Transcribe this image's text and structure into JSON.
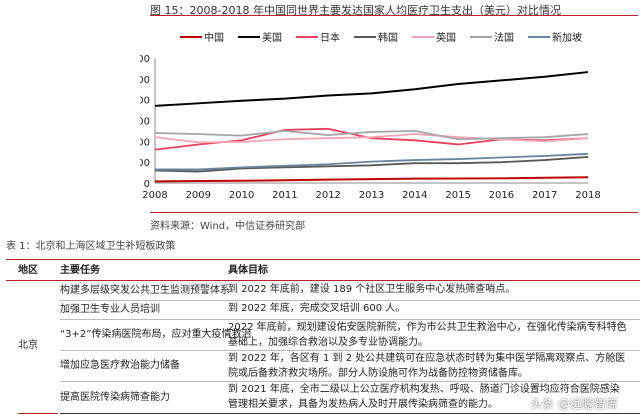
{
  "figure": {
    "title": "图 15：2008-2018 年中国同世界主要发达国家人均医疗卫生支出（美元）对比情况",
    "source": "资料来源：Wind，中信证券研究部"
  },
  "chart_data": {
    "type": "line",
    "title": "",
    "xlabel": "",
    "ylabel": "",
    "x": [
      2008,
      2009,
      2010,
      2011,
      2012,
      2013,
      2014,
      2015,
      2016,
      2017,
      2018
    ],
    "ylim": [
      0,
      12000
    ],
    "yticks": [
      "0",
      "2,000",
      "4,000",
      "6,000",
      "8,000",
      "10,000",
      "12,000"
    ],
    "legend": "top",
    "grid": false,
    "series": [
      {
        "name": "中国",
        "color": "#c00000",
        "values": [
          160,
          190,
          220,
          260,
          320,
          370,
          420,
          430,
          450,
          500,
          550
        ]
      },
      {
        "name": "美国",
        "color": "#000000",
        "values": [
          7400,
          7650,
          7900,
          8100,
          8400,
          8600,
          9000,
          9500,
          9850,
          10200,
          10650
        ]
      },
      {
        "name": "日本",
        "color": "#e8415f",
        "values": [
          3200,
          3700,
          4100,
          5100,
          5200,
          4300,
          4100,
          3700,
          4200,
          4100,
          4300
        ]
      },
      {
        "name": "韩国",
        "color": "#595959",
        "values": [
          1200,
          1100,
          1400,
          1500,
          1600,
          1700,
          1900,
          1900,
          2000,
          2200,
          2500
        ]
      },
      {
        "name": "英国",
        "color": "#f4a6b4",
        "values": [
          4400,
          3900,
          3950,
          4200,
          4300,
          4400,
          4700,
          4400,
          4200,
          4000,
          4300
        ]
      },
      {
        "name": "法国",
        "color": "#a6a6a6",
        "values": [
          4800,
          4700,
          4550,
          5000,
          4600,
          4900,
          5000,
          4200,
          4300,
          4400,
          4700
        ]
      },
      {
        "name": "新加坡",
        "color": "#6d849e",
        "values": [
          1300,
          1300,
          1500,
          1650,
          1800,
          2050,
          2200,
          2300,
          2450,
          2600,
          2800
        ]
      }
    ]
  },
  "table": {
    "title": "表 1：北京和上海区域卫生补短板政策",
    "headers": [
      "地区",
      "主要任务",
      "具体目标"
    ],
    "region": "北京",
    "rows": [
      {
        "task": "构建多层级突发公共卫生监测预警体系",
        "target": "到 2022 年底前，建设 189 个社区卫生服务中心发热筛查哨点。"
      },
      {
        "task": "加强卫生专业人员培训",
        "target": "到 2022 年底，完成交叉培训 600 人。"
      },
      {
        "task": "“3+2”传染病医院布局，应对重大疫情救治",
        "target": "2022 年底前，规划建设佑安医院新院，作为市公共卫生救治中心，在强化传染病专科特色基础上，加强综合救治以及多专业协调能力。"
      },
      {
        "task": "增加应急医疗救治能力储备",
        "target": "到 2022 年，各区有 1 到 2 处公共建筑可在应急状态时转为集中医学隔离观察点、方舱医院或后备救济救灾场所。部分人防设施可作为战备防控物资储备库。"
      },
      {
        "task": "提高医院传染病筛查能力",
        "target": "到 2021 年底，全市二级以上公立医疗机构发热、呼吸、肠道门诊设置均应符合医院感染管理相关要求，具备为发热病人及时开展传染病筛查的能力。"
      }
    ]
  },
  "watermark": "头条 @远瞻智库"
}
